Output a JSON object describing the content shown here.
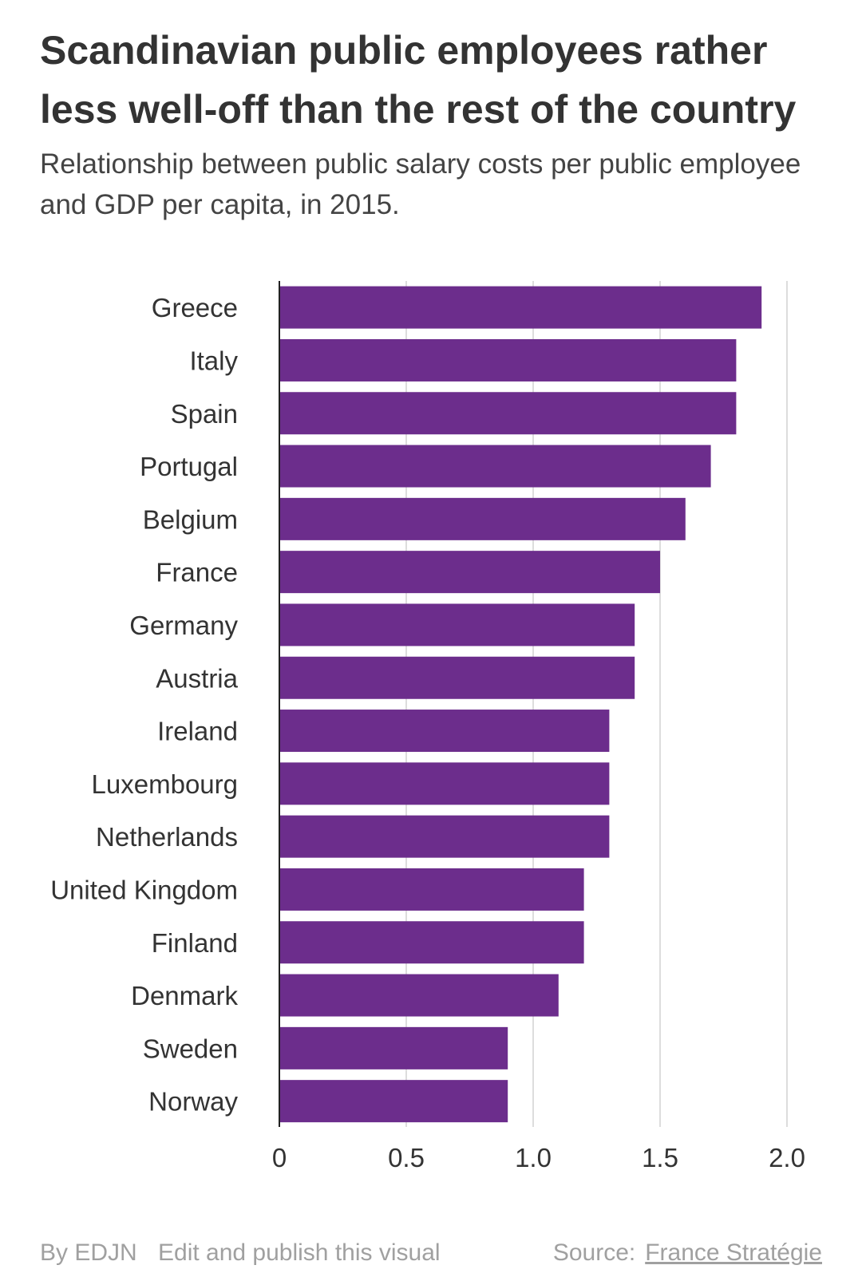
{
  "header": {
    "title": "Scandinavian public employees rather less well-off than the rest of the country",
    "subtitle": "Relationship between public salary costs per public employee and GDP per capita, in 2015."
  },
  "chart_data": {
    "type": "bar",
    "orientation": "horizontal",
    "title": "Scandinavian public employees rather less well-off than the rest of the country",
    "subtitle": "Relationship between public salary costs per public employee and GDP per capita, in 2015.",
    "xlabel": "",
    "ylabel": "",
    "xlim": [
      0,
      2.0
    ],
    "ticks": [
      0,
      0.5,
      1.0,
      1.5,
      2.0
    ],
    "tick_labels": [
      "0",
      "0.5",
      "1.0",
      "1.5",
      "2.0"
    ],
    "grid": true,
    "bar_color": "#6c2d8c",
    "categories": [
      "Greece",
      "Italy",
      "Spain",
      "Portugal",
      "Belgium",
      "France",
      "Germany",
      "Austria",
      "Ireland",
      "Luxembourg",
      "Netherlands",
      "United Kingdom",
      "Finland",
      "Denmark",
      "Sweden",
      "Norway"
    ],
    "values": [
      1.9,
      1.8,
      1.8,
      1.7,
      1.6,
      1.5,
      1.4,
      1.4,
      1.3,
      1.3,
      1.3,
      1.2,
      1.2,
      1.1,
      0.9,
      0.9
    ]
  },
  "footer": {
    "byline": "By EDJN",
    "edit_link": "Edit and publish this visual",
    "source_label": "Source:",
    "source_link": "France Stratégie"
  }
}
